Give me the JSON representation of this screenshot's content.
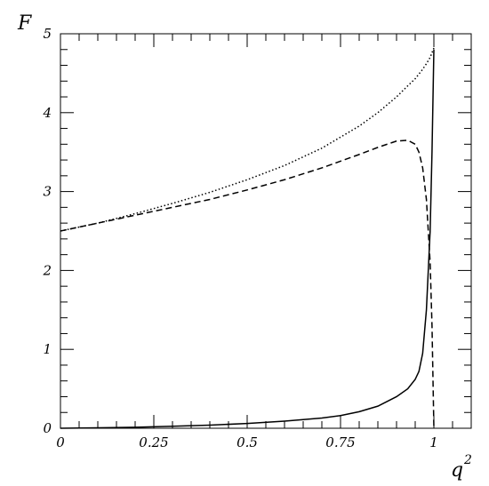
{
  "chart_data": {
    "type": "line",
    "title": "",
    "xlabel": "q",
    "xlabel_superscript": "2",
    "ylabel": "F",
    "xlim": [
      0,
      1.1
    ],
    "ylim": [
      0,
      5.0
    ],
    "x_ticks": [
      0,
      0.25,
      0.5,
      0.75,
      1
    ],
    "x_tick_labels": [
      "0",
      "0.25",
      "0.5",
      "0.75",
      "1"
    ],
    "y_ticks": [
      0,
      1,
      2,
      3,
      4,
      5
    ],
    "y_tick_labels": [
      "0",
      "1",
      "2",
      "3",
      "4",
      "5"
    ],
    "grid": false,
    "legend": "none",
    "series": [
      {
        "style": "solid",
        "color": "#000000",
        "x": [
          0,
          0.1,
          0.2,
          0.3,
          0.4,
          0.5,
          0.6,
          0.7,
          0.75,
          0.8,
          0.85,
          0.9,
          0.93,
          0.95,
          0.96,
          0.97,
          0.98,
          0.99,
          0.995,
          1.0
        ],
        "y": [
          0,
          0.005,
          0.012,
          0.025,
          0.04,
          0.06,
          0.09,
          0.13,
          0.16,
          0.21,
          0.28,
          0.4,
          0.5,
          0.62,
          0.72,
          0.95,
          1.5,
          2.5,
          3.5,
          4.8
        ]
      },
      {
        "style": "dashed",
        "color": "#000000",
        "x": [
          0,
          0.1,
          0.2,
          0.3,
          0.4,
          0.5,
          0.6,
          0.7,
          0.8,
          0.85,
          0.9,
          0.93,
          0.95,
          0.96,
          0.97,
          0.98,
          0.99,
          0.995,
          1.0
        ],
        "y": [
          2.5,
          2.6,
          2.7,
          2.8,
          2.9,
          3.02,
          3.15,
          3.3,
          3.47,
          3.56,
          3.64,
          3.65,
          3.6,
          3.5,
          3.3,
          2.9,
          2.1,
          1.3,
          0
        ]
      },
      {
        "style": "dotted",
        "color": "#000000",
        "x": [
          0,
          0.1,
          0.2,
          0.3,
          0.4,
          0.5,
          0.6,
          0.7,
          0.8,
          0.85,
          0.9,
          0.93,
          0.95,
          0.97,
          0.98,
          0.99,
          1.0
        ],
        "y": [
          2.5,
          2.6,
          2.72,
          2.85,
          2.99,
          3.15,
          3.33,
          3.55,
          3.83,
          4.0,
          4.2,
          4.34,
          4.43,
          4.55,
          4.62,
          4.7,
          4.82
        ]
      }
    ]
  }
}
